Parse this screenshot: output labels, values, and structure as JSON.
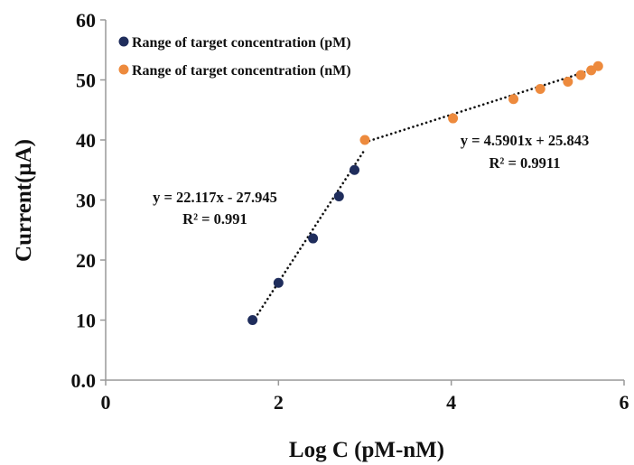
{
  "chart_data": {
    "type": "scatter",
    "xlabel": "Log C (pM-nM)",
    "ylabel": "Current(μA)",
    "xlim": [
      0,
      6
    ],
    "ylim": [
      0,
      60
    ],
    "x_ticks": [
      "0",
      "2",
      "4",
      "6"
    ],
    "y_ticks": [
      "0.0",
      "10",
      "20",
      "30",
      "40",
      "50",
      "60"
    ],
    "grid": false,
    "legend_position": "top-left",
    "series": [
      {
        "name": "Range of target concentration (pM)",
        "color": "#1f2d5c",
        "x": [
          1.7,
          2.0,
          2.4,
          2.7,
          2.88
        ],
        "y": [
          10.0,
          16.2,
          23.6,
          30.6,
          35.0
        ],
        "trendline": {
          "x_range": [
            1.7,
            3.0
          ],
          "equation": "y = 22.117x - 27.945",
          "r2": "R² = 0.991"
        }
      },
      {
        "name": "Range of target concentration (nM)",
        "color": "#ed8a3d",
        "x": [
          3.0,
          4.02,
          4.72,
          5.03,
          5.35,
          5.5,
          5.62,
          5.7
        ],
        "y": [
          40.0,
          43.6,
          46.8,
          48.5,
          49.7,
          50.8,
          51.6,
          52.3
        ],
        "trendline": {
          "x_range": [
            3.0,
            5.7
          ],
          "equation": "y = 4.5901x + 25.843",
          "r2": "R² = 0.9911"
        }
      }
    ]
  }
}
